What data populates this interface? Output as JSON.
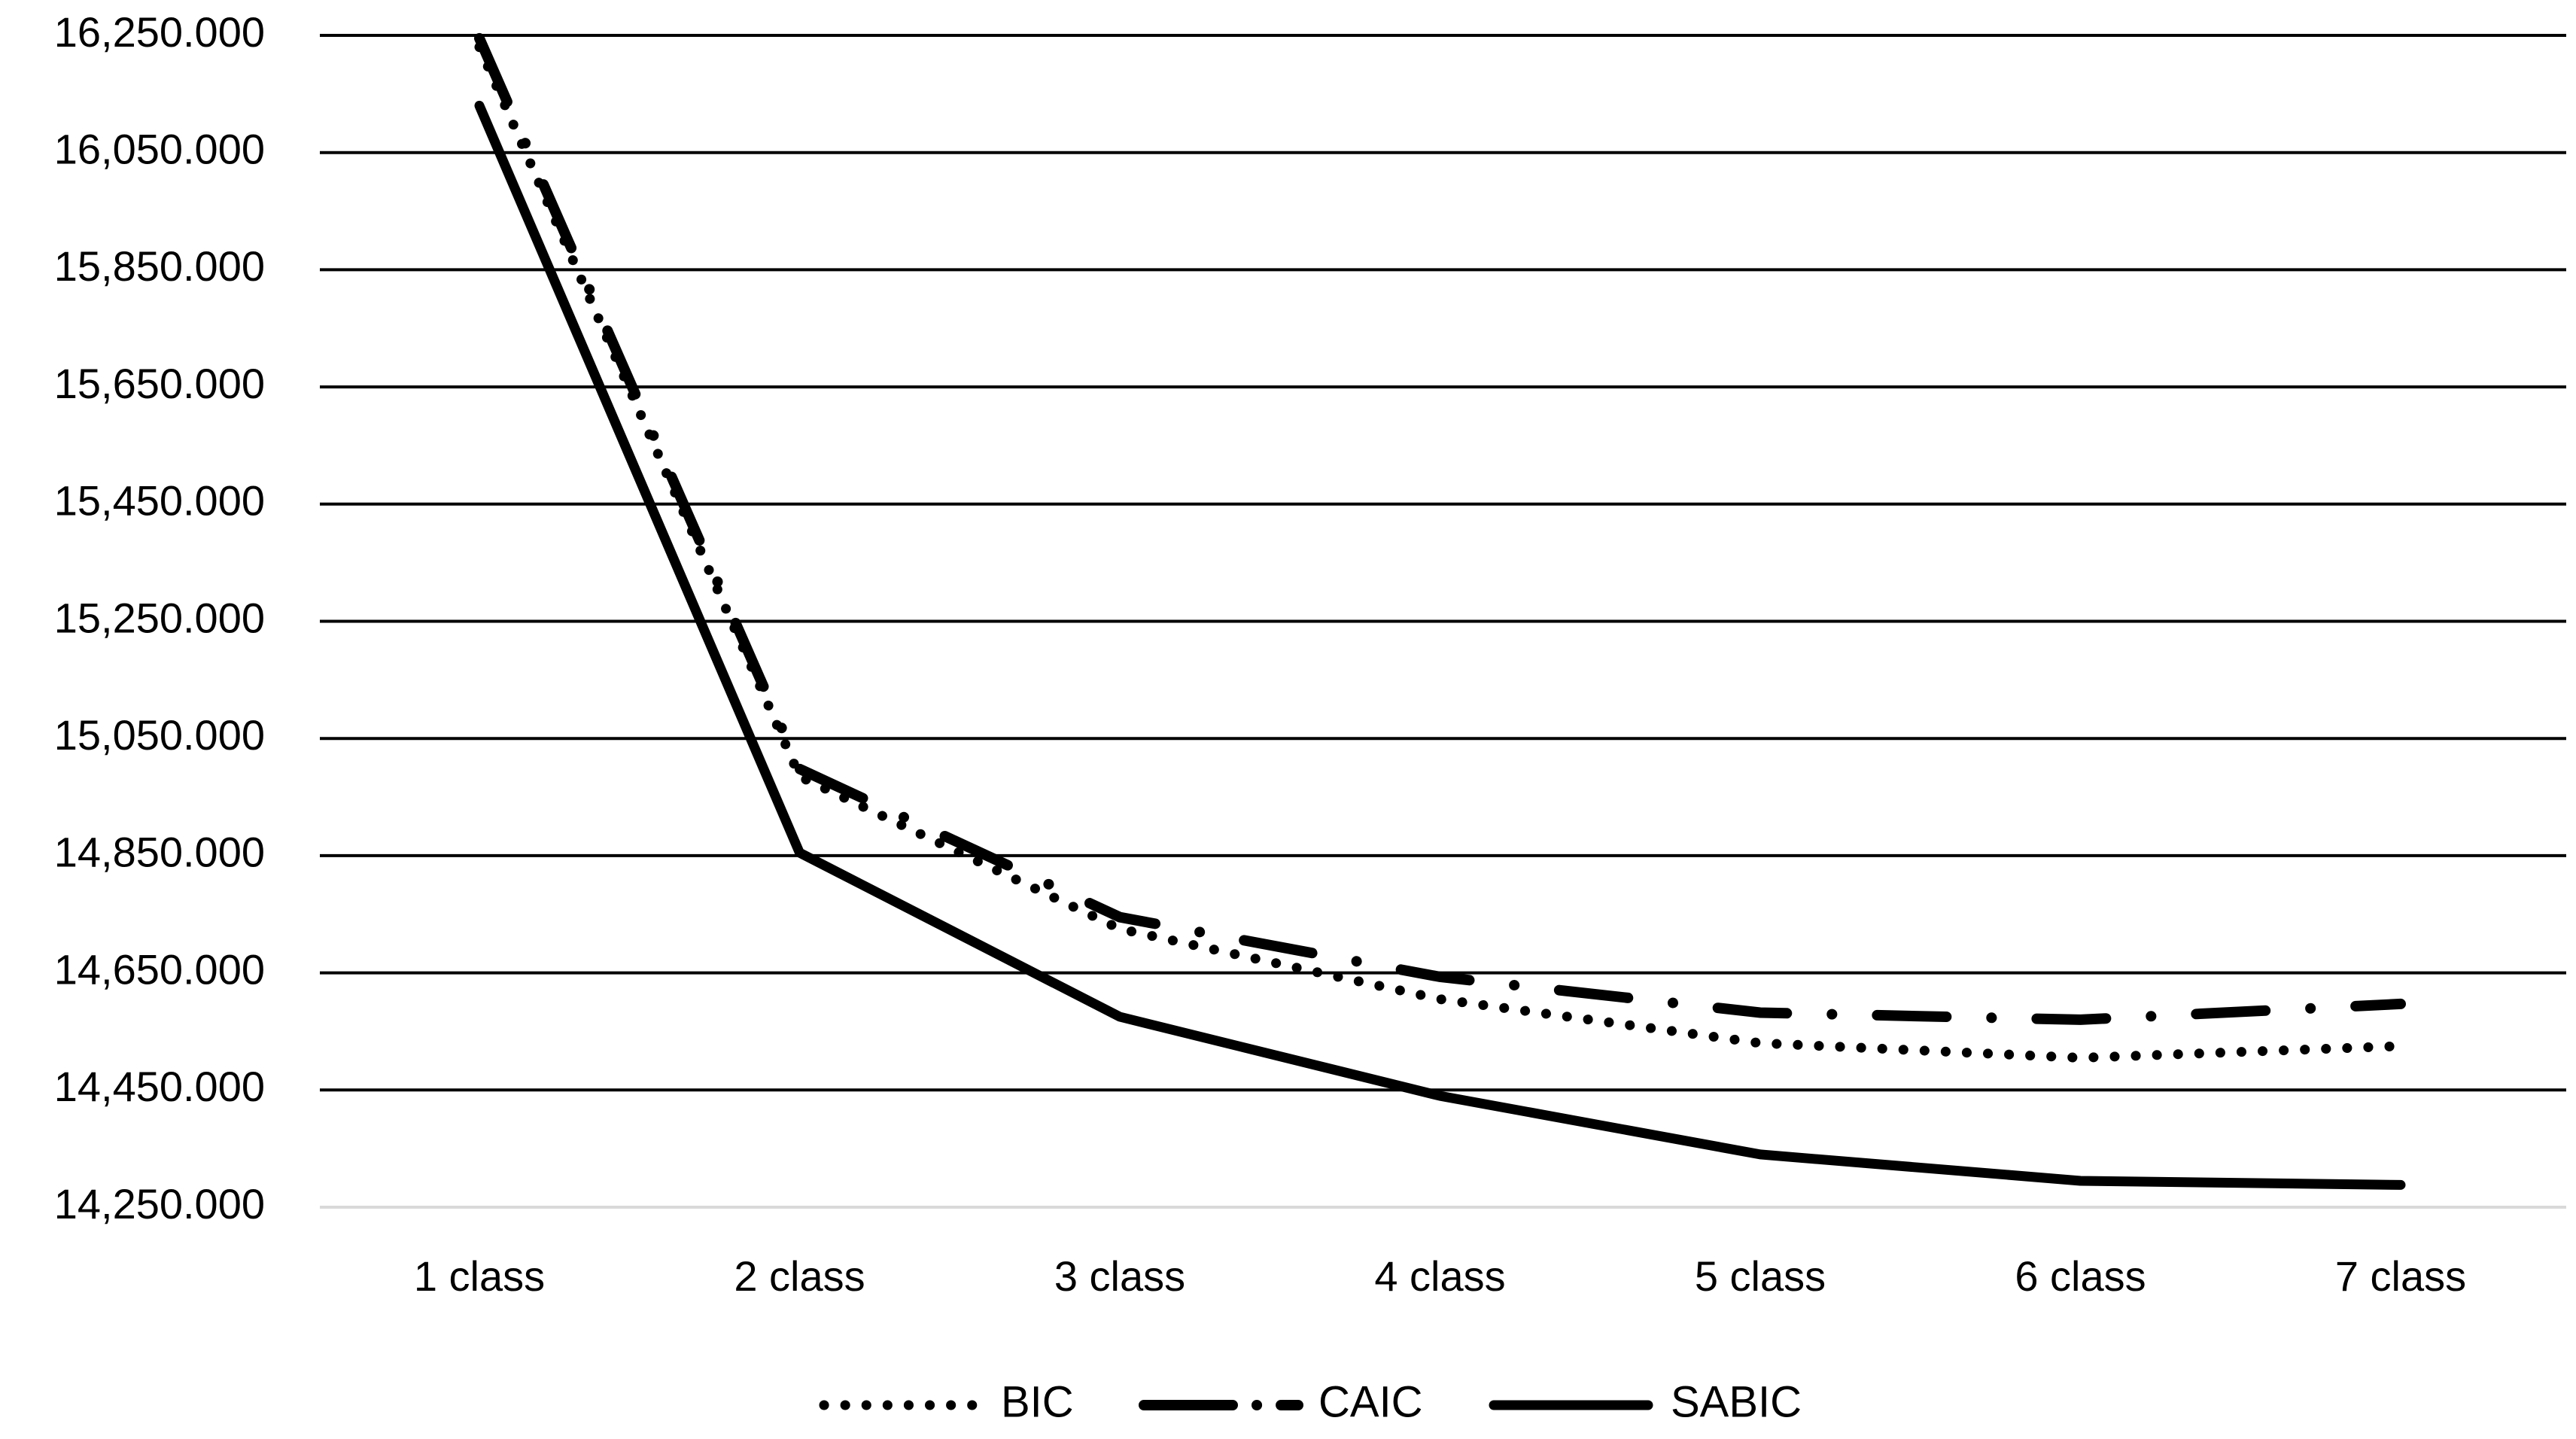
{
  "chart_data": {
    "type": "line",
    "title": "",
    "xlabel": "",
    "ylabel": "",
    "categories": [
      "1 class",
      "2 class",
      "3 class",
      "4 class",
      "5 class",
      "6 class",
      "7 class"
    ],
    "y_ticks": [
      "14,250.000",
      "14,450.000",
      "14,650.000",
      "14,850.000",
      "15,050.000",
      "15,250.000",
      "15,450.000",
      "15,650.000",
      "15,850.000",
      "16,050.000",
      "16,250.000"
    ],
    "ylim": [
      14250,
      16250
    ],
    "grid": true,
    "legend_position": "bottom",
    "series": [
      {
        "name": "BIC",
        "style": "dotted",
        "color": "#000000",
        "values": [
          16230,
          14985,
          14725,
          14605,
          14530,
          14505,
          14525
        ]
      },
      {
        "name": "CAIC",
        "style": "dash-dot",
        "color": "#000000",
        "values": [
          16245,
          14998,
          14745,
          14643,
          14582,
          14570,
          14597
        ]
      },
      {
        "name": "SABIC",
        "style": "solid",
        "color": "#000000",
        "values": [
          16130,
          14855,
          14575,
          14440,
          14340,
          14295,
          14288
        ]
      }
    ]
  }
}
